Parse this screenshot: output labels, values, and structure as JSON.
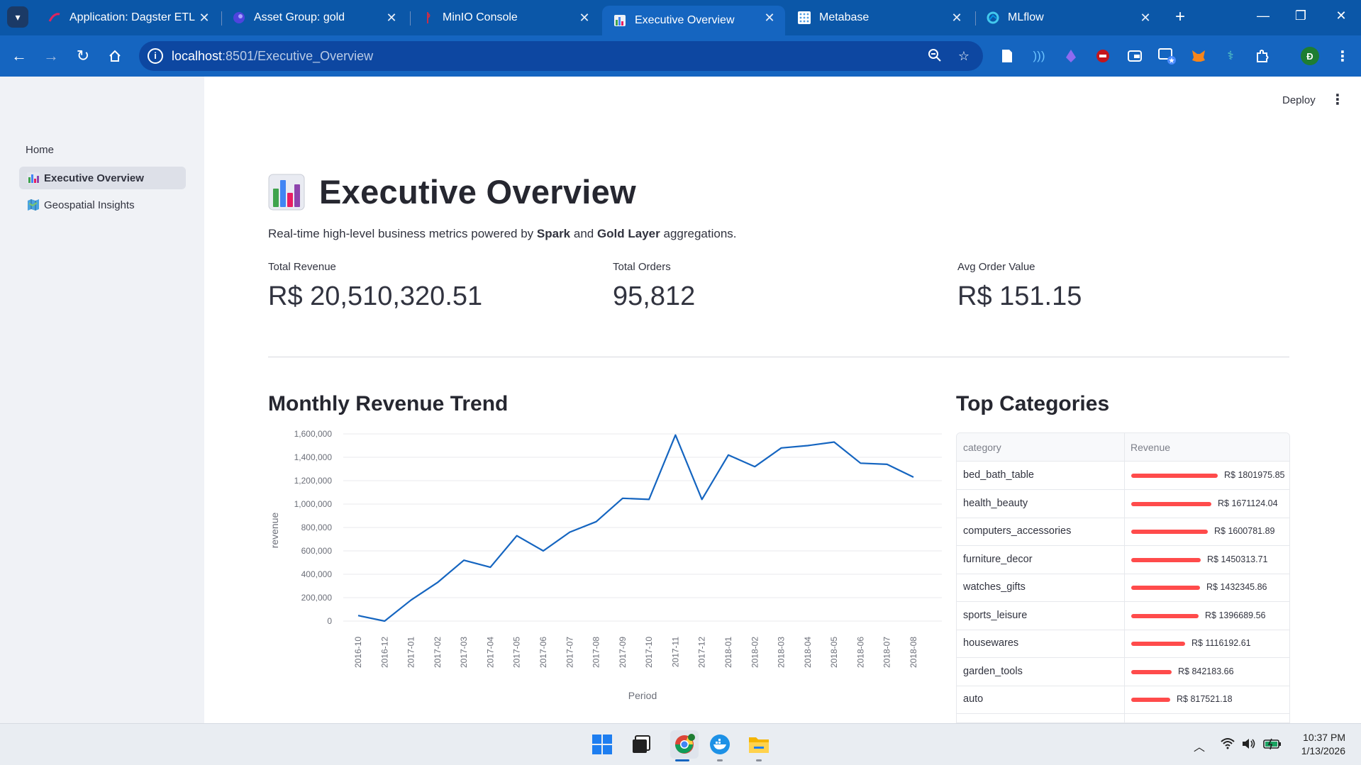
{
  "browser": {
    "tabs": [
      {
        "title": "Application: Dagster ETL Pi",
        "icon": "dagster-icon"
      },
      {
        "title": "Asset Group: gold",
        "icon": "dagster-icon"
      },
      {
        "title": "MinIO Console",
        "icon": "minio-icon"
      },
      {
        "title": "Executive Overview",
        "icon": "bar-chart-icon",
        "active": true
      },
      {
        "title": "Metabase",
        "icon": "metabase-icon"
      },
      {
        "title": "MLflow",
        "icon": "mlflow-icon"
      }
    ],
    "url_host": "localhost",
    "url_path": ":8501/Executive_Overview",
    "profile_initial": "Đ"
  },
  "sidebar": {
    "home_label": "Home",
    "items": [
      {
        "label": "Executive Overview",
        "icon": "bar-chart-icon",
        "active": true
      },
      {
        "label": "Geospatial Insights",
        "icon": "map-icon",
        "active": false
      }
    ]
  },
  "header": {
    "deploy_label": "Deploy"
  },
  "main": {
    "title": "Executive Overview",
    "subtitle_pre": "Real-time high-level business metrics powered by ",
    "subtitle_b1": "Spark",
    "subtitle_mid": " and ",
    "subtitle_b2": "Gold Layer",
    "subtitle_post": " aggregations.",
    "metrics": [
      {
        "label": "Total Revenue",
        "value": "R$ 20,510,320.51"
      },
      {
        "label": "Total Orders",
        "value": "95,812"
      },
      {
        "label": "Avg Order Value",
        "value": "R$ 151.15"
      }
    ],
    "trend_title": "Monthly Revenue Trend",
    "categories_title": "Top Categories"
  },
  "chart_data": {
    "type": "line",
    "xlabel": "Period",
    "ylabel": "revenue",
    "ylim": [
      0,
      1600000
    ],
    "yticks": [
      "0",
      "200,000",
      "400,000",
      "600,000",
      "800,000",
      "1,000,000",
      "1,200,000",
      "1,400,000",
      "1,600,000"
    ],
    "x": [
      "2016-10",
      "2016-12",
      "2017-01",
      "2017-02",
      "2017-03",
      "2017-04",
      "2017-05",
      "2017-06",
      "2017-07",
      "2017-08",
      "2017-09",
      "2017-10",
      "2017-11",
      "2017-12",
      "2018-01",
      "2018-02",
      "2018-03",
      "2018-04",
      "2018-05",
      "2018-06",
      "2018-07",
      "2018-08"
    ],
    "series": [
      {
        "values": [
          47000,
          0,
          180000,
          330000,
          520000,
          460000,
          730000,
          600000,
          760000,
          850000,
          1050000,
          1040000,
          1590000,
          1040000,
          1420000,
          1320000,
          1480000,
          1500000,
          1530000,
          1350000,
          1340000,
          1230000
        ],
        "color": "#1565c0"
      }
    ],
    "grid": true
  },
  "table": {
    "columns": [
      "category",
      "Revenue"
    ],
    "max_revenue": 1801975.85,
    "bar_color": "#ff4b4b",
    "rows": [
      {
        "category": "bed_bath_table",
        "revenue": 1801975.85,
        "label": "R$ 1801975.85"
      },
      {
        "category": "health_beauty",
        "revenue": 1671124.04,
        "label": "R$ 1671124.04"
      },
      {
        "category": "computers_accessories",
        "revenue": 1600781.89,
        "label": "R$ 1600781.89"
      },
      {
        "category": "furniture_decor",
        "revenue": 1450313.71,
        "label": "R$ 1450313.71"
      },
      {
        "category": "watches_gifts",
        "revenue": 1432345.86,
        "label": "R$ 1432345.86"
      },
      {
        "category": "sports_leisure",
        "revenue": 1396689.56,
        "label": "R$ 1396689.56"
      },
      {
        "category": "housewares",
        "revenue": 1116192.61,
        "label": "R$ 1116192.61"
      },
      {
        "category": "garden_tools",
        "revenue": 842183.66,
        "label": "R$ 842183.66"
      },
      {
        "category": "auto",
        "revenue": 817521.18,
        "label": "R$ 817521.18"
      }
    ]
  },
  "taskbar": {
    "time": "10:37 PM",
    "date": "1/13/2026"
  }
}
